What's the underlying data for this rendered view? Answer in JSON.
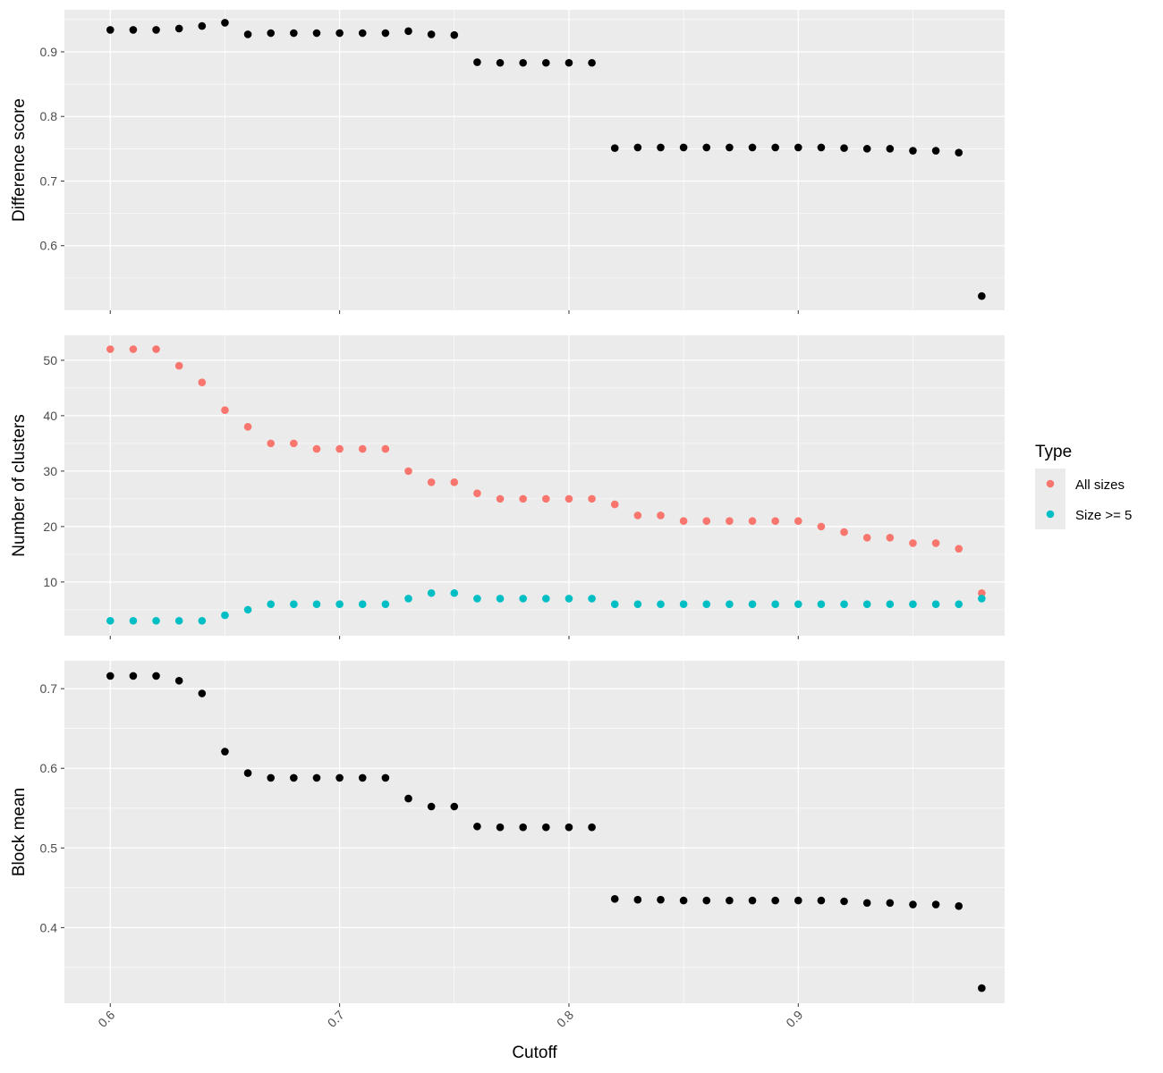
{
  "chart_data": {
    "type": "scatter",
    "xlabel": "Cutoff",
    "xlim": [
      0.58,
      0.99
    ],
    "x_ticks": [
      0.6,
      0.7,
      0.8,
      0.9
    ],
    "x_tick_labels": [
      "0.6",
      "0.7",
      "0.8",
      "0.9"
    ],
    "grid": true,
    "legend": {
      "title": "Type",
      "position": "right",
      "entries": [
        {
          "label": "All sizes",
          "color": "#F8766D"
        },
        {
          "label": "Size >= 5",
          "color": "#00BFC4"
        }
      ]
    },
    "panels": [
      {
        "ylabel": "Difference score",
        "ylim": [
          0.5,
          0.965
        ],
        "y_ticks": [
          0.6,
          0.7,
          0.8,
          0.9
        ],
        "y_tick_labels": [
          "0.6",
          "0.7",
          "0.8",
          "0.9"
        ],
        "series": [
          {
            "color": "#000000",
            "x": [
              0.6,
              0.61,
              0.62,
              0.63,
              0.64,
              0.65,
              0.66,
              0.67,
              0.68,
              0.69,
              0.7,
              0.71,
              0.72,
              0.73,
              0.74,
              0.75,
              0.76,
              0.77,
              0.78,
              0.79,
              0.8,
              0.81,
              0.82,
              0.83,
              0.84,
              0.85,
              0.86,
              0.87,
              0.88,
              0.89,
              0.9,
              0.91,
              0.92,
              0.93,
              0.94,
              0.95,
              0.96,
              0.97,
              0.98
            ],
            "y": [
              0.934,
              0.934,
              0.934,
              0.936,
              0.94,
              0.945,
              0.927,
              0.929,
              0.929,
              0.929,
              0.929,
              0.929,
              0.929,
              0.932,
              0.927,
              0.926,
              0.884,
              0.883,
              0.883,
              0.883,
              0.883,
              0.883,
              0.751,
              0.752,
              0.752,
              0.752,
              0.752,
              0.752,
              0.752,
              0.752,
              0.752,
              0.752,
              0.751,
              0.75,
              0.75,
              0.747,
              0.747,
              0.744,
              0.522
            ]
          }
        ]
      },
      {
        "ylabel": "Number of clusters",
        "ylim": [
          0.3,
          54.5
        ],
        "y_ticks": [
          10,
          20,
          30,
          40,
          50
        ],
        "y_tick_labels": [
          "10",
          "20",
          "30",
          "40",
          "50"
        ],
        "series": [
          {
            "name": "All sizes",
            "color": "#F8766D",
            "x": [
              0.6,
              0.61,
              0.62,
              0.63,
              0.64,
              0.65,
              0.66,
              0.67,
              0.68,
              0.69,
              0.7,
              0.71,
              0.72,
              0.73,
              0.74,
              0.75,
              0.76,
              0.77,
              0.78,
              0.79,
              0.8,
              0.81,
              0.82,
              0.83,
              0.84,
              0.85,
              0.86,
              0.87,
              0.88,
              0.89,
              0.9,
              0.91,
              0.92,
              0.93,
              0.94,
              0.95,
              0.96,
              0.97,
              0.98
            ],
            "y": [
              52,
              52,
              52,
              49,
              46,
              41,
              38,
              35,
              35,
              34,
              34,
              34,
              34,
              30,
              28,
              28,
              26,
              25,
              25,
              25,
              25,
              25,
              24,
              22,
              22,
              21,
              21,
              21,
              21,
              21,
              21,
              20,
              19,
              18,
              18,
              17,
              17,
              16,
              8
            ]
          },
          {
            "name": "Size >= 5",
            "color": "#00BFC4",
            "x": [
              0.6,
              0.61,
              0.62,
              0.63,
              0.64,
              0.65,
              0.66,
              0.67,
              0.68,
              0.69,
              0.7,
              0.71,
              0.72,
              0.73,
              0.74,
              0.75,
              0.76,
              0.77,
              0.78,
              0.79,
              0.8,
              0.81,
              0.82,
              0.83,
              0.84,
              0.85,
              0.86,
              0.87,
              0.88,
              0.89,
              0.9,
              0.91,
              0.92,
              0.93,
              0.94,
              0.95,
              0.96,
              0.97,
              0.98
            ],
            "y": [
              3,
              3,
              3,
              3,
              3,
              4,
              5,
              6,
              6,
              6,
              6,
              6,
              6,
              7,
              8,
              8,
              7,
              7,
              7,
              7,
              7,
              7,
              6,
              6,
              6,
              6,
              6,
              6,
              6,
              6,
              6,
              6,
              6,
              6,
              6,
              6,
              6,
              6,
              7
            ]
          }
        ]
      },
      {
        "ylabel": "Block mean",
        "ylim": [
          0.305,
          0.735
        ],
        "y_ticks": [
          0.4,
          0.5,
          0.6,
          0.7
        ],
        "y_tick_labels": [
          "0.4",
          "0.5",
          "0.6",
          "0.7"
        ],
        "series": [
          {
            "color": "#000000",
            "x": [
              0.6,
              0.61,
              0.62,
              0.63,
              0.64,
              0.65,
              0.66,
              0.67,
              0.68,
              0.69,
              0.7,
              0.71,
              0.72,
              0.73,
              0.74,
              0.75,
              0.76,
              0.77,
              0.78,
              0.79,
              0.8,
              0.81,
              0.82,
              0.83,
              0.84,
              0.85,
              0.86,
              0.87,
              0.88,
              0.89,
              0.9,
              0.91,
              0.92,
              0.93,
              0.94,
              0.95,
              0.96,
              0.97,
              0.98
            ],
            "y": [
              0.716,
              0.716,
              0.716,
              0.71,
              0.694,
              0.621,
              0.594,
              0.588,
              0.588,
              0.588,
              0.588,
              0.588,
              0.588,
              0.562,
              0.552,
              0.552,
              0.527,
              0.526,
              0.526,
              0.526,
              0.526,
              0.526,
              0.436,
              0.435,
              0.435,
              0.434,
              0.434,
              0.434,
              0.434,
              0.434,
              0.434,
              0.434,
              0.433,
              0.431,
              0.431,
              0.429,
              0.429,
              0.427,
              0.324
            ]
          }
        ]
      }
    ]
  }
}
